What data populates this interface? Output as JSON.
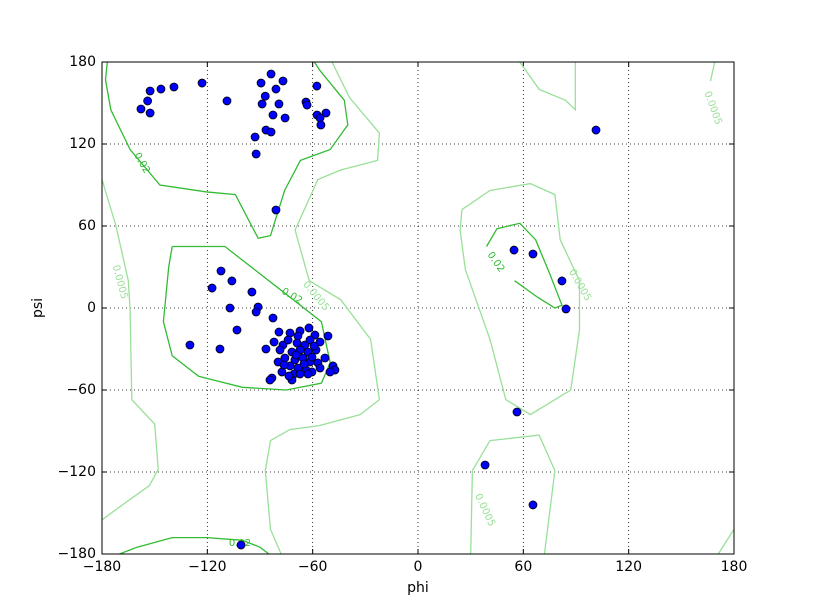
{
  "chart_data": {
    "type": "scatter",
    "xlabel": "phi",
    "ylabel": "psi",
    "xlim": [
      -180,
      180
    ],
    "ylim": [
      -180,
      180
    ],
    "xticks": [
      {
        "value": -180,
        "label": "−180"
      },
      {
        "value": -120,
        "label": "−120"
      },
      {
        "value": -60,
        "label": "−60"
      },
      0,
      60,
      120,
      180
    ],
    "yticks": [
      {
        "value": -180,
        "label": "−180"
      },
      {
        "value": -120,
        "label": "−120"
      },
      {
        "value": -60,
        "label": "−60"
      },
      0,
      60,
      120,
      180
    ],
    "grid": true,
    "series": [
      {
        "color": "#0000ff",
        "x": [
          -157.8,
          -154,
          -152.6,
          -152.6,
          -146.4,
          -139,
          -123,
          -108.8,
          -83.7,
          -89.4,
          -80.9,
          -76.9,
          -87,
          -88.8,
          -79.2,
          -63.8,
          -63.2,
          -57.6,
          -82.6,
          -75.7,
          -57.5,
          -52.4,
          -55.8,
          -55.3,
          -86.6,
          -83.7,
          -92.8,
          -92.2,
          -80.9,
          101.4,
          54.7,
          65.5,
          82,
          84.3,
          56.4,
          38.2,
          65.5,
          -100.8,
          -112.2,
          -106,
          -117.3,
          -94.6,
          -107.1,
          -91.1,
          -92.2,
          -82.6,
          -103.1,
          -129.9,
          -112.8,
          -79.2,
          -72.9,
          -67.2,
          -62.1,
          -58.7,
          -68.4,
          -82,
          -76.9,
          -74,
          -68.9,
          -64.4,
          -61.5,
          -55.8,
          -51.3,
          -86.6,
          -78.6,
          -71.8,
          -67.2,
          -62.7,
          -58.1,
          -53,
          -48.4,
          -47.3,
          -50.1,
          -75.8,
          -70.1,
          -65.5,
          -61.5,
          -57,
          -79.7,
          -72.9,
          -68.4,
          -63.8,
          -60.4,
          -55.8,
          -77.5,
          -70.6,
          -67.2,
          -62.7,
          -71.8,
          -83.2,
          -84.3,
          -76.3,
          -69.5,
          -60.4,
          -59.2,
          -64.9,
          -73.5
        ],
        "values": [
          145.6,
          151.5,
          158.8,
          142.7,
          160.2,
          161.7,
          164.6,
          151.5,
          171.2,
          164.6,
          160.2,
          166.1,
          155,
          149.3,
          149.3,
          150.7,
          148.5,
          162.4,
          141.2,
          139,
          141.2,
          142.7,
          139,
          133.9,
          130.2,
          128.8,
          125.1,
          112.7,
          71.7,
          130.2,
          42.4,
          39.5,
          19.8,
          -0.7,
          -76.1,
          -114.9,
          -144.1,
          -173.4,
          27.1,
          19.8,
          14.6,
          11.7,
          0,
          0.7,
          -2.9,
          -7.3,
          -16.1,
          -27.1,
          -30,
          -17.6,
          -18.3,
          -16.8,
          -14.6,
          -19.8,
          -20.5,
          -24.9,
          -27.1,
          -23.4,
          -25.6,
          -27.1,
          -23.4,
          -24.9,
          -20.5,
          -30,
          -30.7,
          -32.2,
          -30.7,
          -32.2,
          -30.7,
          -36.6,
          -42.4,
          -45.4,
          -46.8,
          -36.6,
          -38,
          -36.6,
          -39.5,
          -40.2,
          -39.5,
          -42.4,
          -43.9,
          -45.4,
          -46.8,
          -43.9,
          -46.8,
          -48.3,
          -48.3,
          -48.3,
          -52.7,
          -51.2,
          -52.7,
          -41.7,
          -34.4,
          -35.9,
          -27.8,
          -41,
          -49.8
        ]
      }
    ],
    "contours": [
      {
        "level": 0.02,
        "color": "#33bb33",
        "x": [
          -177,
          -178,
          -175,
          -164,
          -147,
          -121,
          -104,
          -98,
          -91,
          -84,
          -76,
          -67,
          -50,
          -40,
          -42,
          -56,
          -59,
          null,
          -140,
          -110,
          -95,
          -75,
          -55,
          -50,
          -55,
          -75,
          -100,
          -125,
          -140,
          -145,
          -142,
          -140,
          null,
          39,
          45,
          58,
          67,
          75,
          82,
          78,
          68,
          55,
          null,
          -170,
          -160,
          -140,
          -120,
          -100,
          -90,
          -85
        ],
        "y": [
          180,
          167,
          145,
          116,
          90,
          85,
          83,
          68,
          51,
          53,
          86,
          108,
          116,
          134,
          152,
          174,
          180,
          null,
          45,
          45,
          30,
          10,
          -10,
          -40,
          -55,
          -60,
          -58,
          -50,
          -35,
          -10,
          30,
          45,
          null,
          45,
          58,
          62,
          50,
          25,
          2,
          0,
          8,
          20,
          null,
          -180,
          -175,
          -168,
          -168,
          -170,
          -175,
          -180
        ]
      },
      {
        "level": 0.0005,
        "color": "#99e099",
        "x": [
          -180,
          -172,
          -165,
          -164,
          -163,
          -150,
          -148,
          -153,
          -164,
          -180,
          null,
          -49,
          -39,
          -22,
          -23,
          -44,
          -57,
          -70,
          -62,
          -44,
          -27,
          -22,
          -33,
          -56,
          -73,
          -84,
          -87,
          -84,
          -78,
          null,
          25,
          41,
          64,
          78,
          81,
          92,
          92,
          87,
          64,
          50,
          41,
          27,
          24,
          25,
          null,
          58,
          69,
          84,
          89.6,
          89.6,
          null,
          169,
          166.6,
          null,
          30,
          31,
          41,
          69,
          78,
          72,
          null,
          171,
          180
        ],
        "y": [
          94,
          60,
          20,
          -1,
          -67,
          -85,
          -118,
          -130,
          -140,
          -155,
          null,
          180,
          154,
          128,
          108,
          101,
          94,
          57,
          20,
          6,
          -23,
          -67,
          -78,
          -86,
          -89,
          -97,
          -119,
          -162,
          -180,
          null,
          72,
          86,
          91,
          83,
          50,
          20,
          -16,
          -60,
          -78,
          -67,
          -23,
          28,
          57,
          72,
          null,
          180,
          160,
          152,
          145,
          180,
          null,
          180,
          166,
          null,
          -180,
          -119,
          -97,
          -93,
          -119,
          -180,
          null,
          -180,
          -162
        ]
      }
    ]
  }
}
